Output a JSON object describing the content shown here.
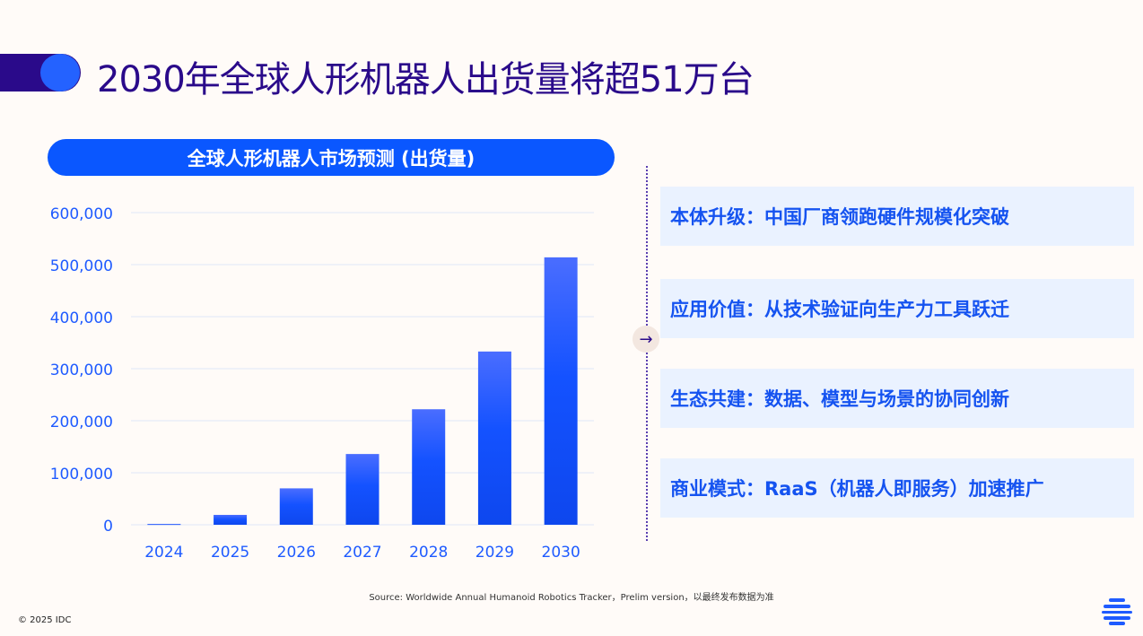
{
  "header": {
    "title": "2030年全球人形机器人出货量将超51万台"
  },
  "chart_data": {
    "type": "bar",
    "title": "全球人形机器人市场预测 (出货量)",
    "categories": [
      "2024",
      "2025",
      "2026",
      "2027",
      "2028",
      "2029",
      "2030"
    ],
    "values": [
      1500,
      19000,
      70000,
      136000,
      222000,
      333000,
      514000
    ],
    "ylim": [
      0,
      600000
    ],
    "yticks": [
      "0",
      "100,000",
      "200,000",
      "300,000",
      "400,000",
      "500,000",
      "600,000"
    ],
    "grid": true,
    "bar_color_top": "#4a6dff",
    "bar_color_bottom": "#0e47ee",
    "tick_color": "#1f5bff"
  },
  "highlights": [
    "本体升级：中国厂商领跑硬件规模化突破",
    "应用价值：从技术验证向生产力工具跃迁",
    "生态共建：数据、模型与场景的协同创新",
    "商业模式：RaaS（机器人即服务）加速推广"
  ],
  "arrow_icon": "→",
  "footer": {
    "source": "Source: Worldwide Annual Humanoid Robotics Tracker，Prelim version，以最终发布数据为准",
    "copyright": "© 2025 IDC"
  }
}
